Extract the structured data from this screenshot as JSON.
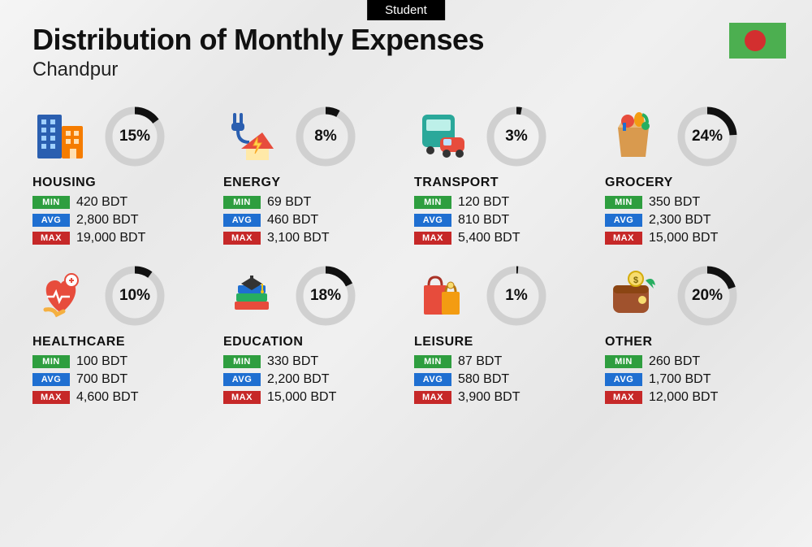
{
  "badge": "Student",
  "title": "Distribution of Monthly Expenses",
  "subtitle": "Chandpur",
  "currency": "BDT",
  "donut": {
    "radius": 32,
    "stroke_width": 9,
    "track_color": "#d0d0d0",
    "arc_color": "#111111"
  },
  "stat_labels": {
    "min": "MIN",
    "avg": "AVG",
    "max": "MAX"
  },
  "stat_colors": {
    "min": "#2e9e3f",
    "avg": "#1f6fd1",
    "max": "#c62828"
  },
  "flag": {
    "bg": "#4caf50",
    "circle": "#d32f2f"
  },
  "categories": [
    {
      "name": "HOUSING",
      "icon": "housing",
      "pct": 15,
      "min": "420",
      "avg": "2,800",
      "max": "19,000"
    },
    {
      "name": "ENERGY",
      "icon": "energy",
      "pct": 8,
      "min": "69",
      "avg": "460",
      "max": "3,100"
    },
    {
      "name": "TRANSPORT",
      "icon": "transport",
      "pct": 3,
      "min": "120",
      "avg": "810",
      "max": "5,400"
    },
    {
      "name": "GROCERY",
      "icon": "grocery",
      "pct": 24,
      "min": "350",
      "avg": "2,300",
      "max": "15,000"
    },
    {
      "name": "HEALTHCARE",
      "icon": "healthcare",
      "pct": 10,
      "min": "100",
      "avg": "700",
      "max": "4,600"
    },
    {
      "name": "EDUCATION",
      "icon": "education",
      "pct": 18,
      "min": "330",
      "avg": "2,200",
      "max": "15,000"
    },
    {
      "name": "LEISURE",
      "icon": "leisure",
      "pct": 1,
      "min": "87",
      "avg": "580",
      "max": "3,900"
    },
    {
      "name": "OTHER",
      "icon": "other",
      "pct": 20,
      "min": "260",
      "avg": "1,700",
      "max": "12,000"
    }
  ]
}
